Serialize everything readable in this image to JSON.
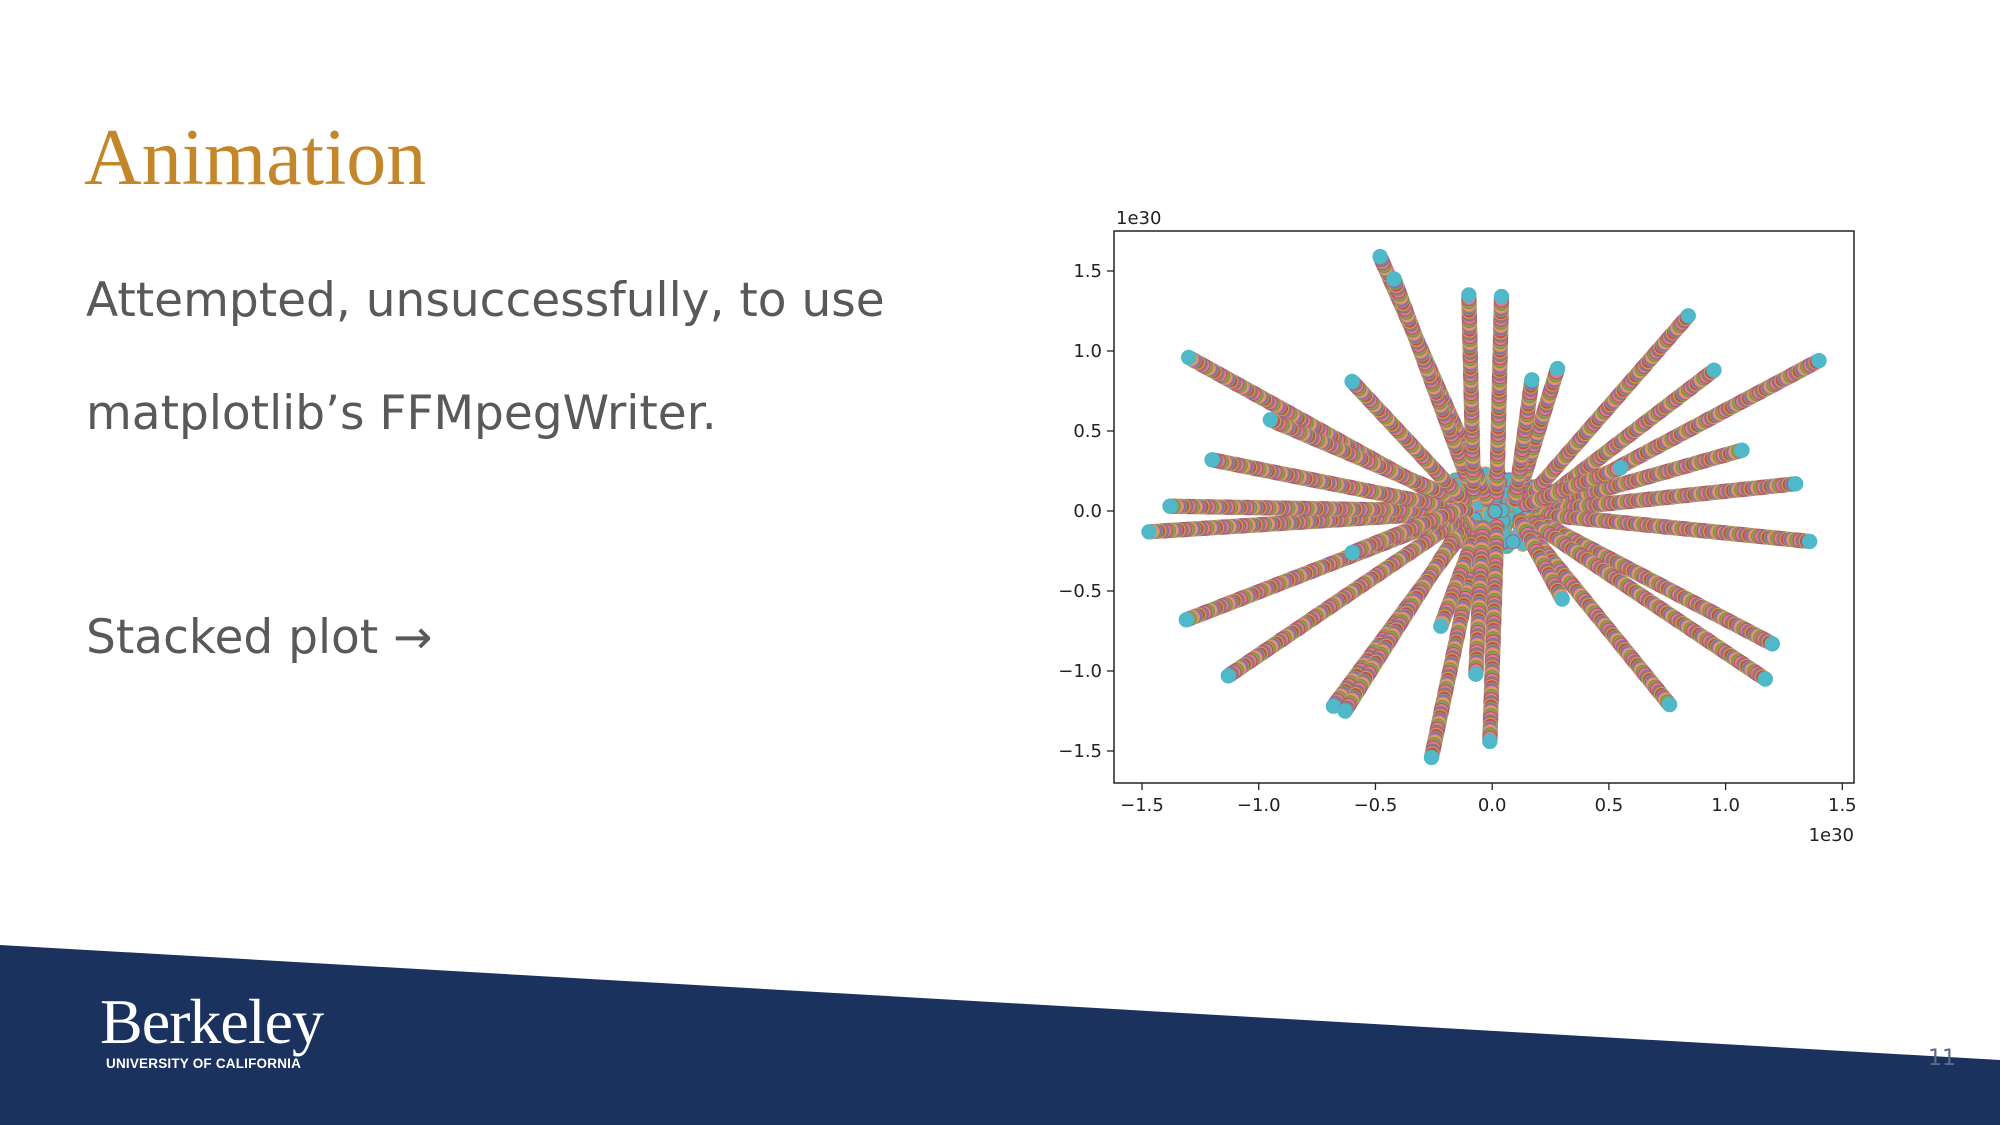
{
  "slide": {
    "title": "Animation",
    "title_color": "#C4862B",
    "body_lines": [
      "Attempted, unsuccessfully, to use",
      "matplotlib’s FFMpegWriter.",
      "Stacked plot →"
    ],
    "page_number": "11"
  },
  "footer": {
    "band_color": "#1B325F",
    "logo_word": "Berkeley",
    "logo_subtitle": "UNIVERSITY OF CALIFORNIA"
  },
  "chart_data": {
    "type": "scatter",
    "title": "",
    "xlabel": "",
    "ylabel": "",
    "x_offset_label": "1e30",
    "y_offset_label": "1e30",
    "xlim": [
      -1.62,
      1.55
    ],
    "ylim": [
      -1.7,
      1.75
    ],
    "x_ticks": [
      -1.5,
      -1.0,
      -0.5,
      0.0,
      0.5,
      1.0,
      1.5
    ],
    "y_ticks": [
      -1.5,
      -1.0,
      -0.5,
      0.0,
      0.5,
      1.0,
      1.5
    ],
    "x_tick_labels": [
      "−1.5",
      "−1.0",
      "−0.5",
      "0.0",
      "0.5",
      "1.0",
      "1.5"
    ],
    "y_tick_labels": [
      "−1.5",
      "−1.0",
      "−0.5",
      "0.0",
      "0.5",
      "1.0",
      "1.5"
    ],
    "grid": false,
    "legend": "none",
    "point_color": "#4FB8C9",
    "point_edge_palette": [
      "#C44E52",
      "#8C6BB1",
      "#D6A24E",
      "#7FA35A",
      "#E07B91",
      "#9A7B5C"
    ],
    "core_center": [
      0.0,
      0.0
    ],
    "core_radius": 0.28,
    "trails": [
      {
        "x0": -0.11,
        "y0": 0.0,
        "x1": -1.3,
        "y1": 0.96
      },
      {
        "x0": -0.02,
        "y0": 0.07,
        "x1": -0.48,
        "y1": 1.59
      },
      {
        "x0": -0.08,
        "y0": 0.1,
        "x1": -0.42,
        "y1": 1.45
      },
      {
        "x0": -0.08,
        "y0": 0.12,
        "x1": -0.1,
        "y1": 1.35
      },
      {
        "x0": 0.02,
        "y0": 0.12,
        "x1": 0.04,
        "y1": 1.34
      },
      {
        "x0": 0.11,
        "y0": 0.09,
        "x1": 0.28,
        "y1": 0.89
      },
      {
        "x0": 0.1,
        "y0": 0.07,
        "x1": 0.17,
        "y1": 0.82
      },
      {
        "x0": 0.14,
        "y0": 0.05,
        "x1": 0.84,
        "y1": 1.22
      },
      {
        "x0": 0.18,
        "y0": 0.02,
        "x1": 0.95,
        "y1": 0.88
      },
      {
        "x0": 0.19,
        "y0": 0.0,
        "x1": 1.4,
        "y1": 0.94
      },
      {
        "x0": 0.2,
        "y0": 0.02,
        "x1": 1.07,
        "y1": 0.38
      },
      {
        "x0": 0.2,
        "y0": 0.0,
        "x1": 1.3,
        "y1": 0.17
      },
      {
        "x0": 0.2,
        "y0": -0.02,
        "x1": 1.36,
        "y1": -0.19
      },
      {
        "x0": 0.18,
        "y0": -0.05,
        "x1": 1.2,
        "y1": -0.83
      },
      {
        "x0": 0.16,
        "y0": -0.06,
        "x1": 1.17,
        "y1": -1.05
      },
      {
        "x0": 0.13,
        "y0": -0.08,
        "x1": 0.76,
        "y1": -1.21
      },
      {
        "x0": 0.02,
        "y0": -0.1,
        "x1": -0.01,
        "y1": -1.44
      },
      {
        "x0": -0.05,
        "y0": -0.1,
        "x1": -0.26,
        "y1": -1.54
      },
      {
        "x0": -0.06,
        "y0": -0.1,
        "x1": -0.22,
        "y1": -0.72
      },
      {
        "x0": -0.1,
        "y0": -0.08,
        "x1": -0.68,
        "y1": -1.22
      },
      {
        "x0": -0.12,
        "y0": -0.07,
        "x1": -0.63,
        "y1": -1.25
      },
      {
        "x0": -0.14,
        "y0": -0.05,
        "x1": -1.13,
        "y1": -1.03
      },
      {
        "x0": -0.16,
        "y0": -0.03,
        "x1": -1.31,
        "y1": -0.68
      },
      {
        "x0": -0.18,
        "y0": -0.01,
        "x1": -1.47,
        "y1": -0.13
      },
      {
        "x0": -0.18,
        "y0": 0.0,
        "x1": -1.38,
        "y1": 0.03
      },
      {
        "x0": -0.17,
        "y0": 0.02,
        "x1": -1.2,
        "y1": 0.32
      },
      {
        "x0": -0.13,
        "y0": 0.06,
        "x1": -0.95,
        "y1": 0.57
      },
      {
        "x0": -0.12,
        "y0": 0.06,
        "x1": -0.6,
        "y1": 0.81
      },
      {
        "x0": 0.15,
        "y0": 0.04,
        "x1": 0.55,
        "y1": 0.27
      },
      {
        "x0": 0.12,
        "y0": -0.06,
        "x1": 0.3,
        "y1": -0.55
      },
      {
        "x0": -0.14,
        "y0": 0.01,
        "x1": -0.6,
        "y1": -0.26
      },
      {
        "x0": -0.04,
        "y0": -0.1,
        "x1": -0.07,
        "y1": -1.02
      }
    ]
  }
}
